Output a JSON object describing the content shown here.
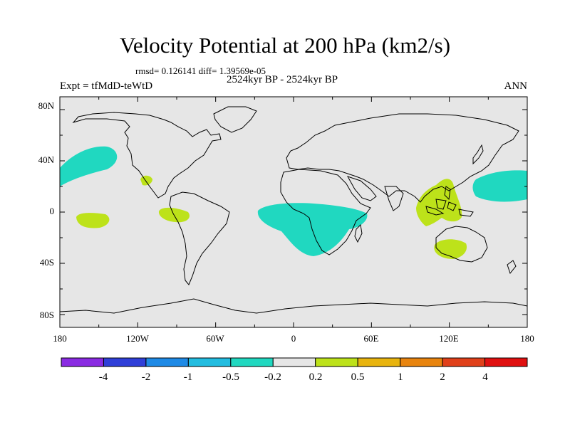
{
  "header": {
    "title": "Velocity Potential at 200 hPa (km2/s)",
    "stats": "rmsd= 0.126141 diff= 1.39569e-05",
    "left_label": "Expt = tfMdD-teWtD",
    "center_label": "2524kyr BP - 2524kyr BP",
    "right_label": "ANN"
  },
  "axes": {
    "lat_labels": [
      "80N",
      "40N",
      "0",
      "40S",
      "80S"
    ],
    "lon_labels": [
      "180",
      "120W",
      "60W",
      "0",
      "60E",
      "120E",
      "180"
    ]
  },
  "colorbar": {
    "colors": [
      "#8a2be2",
      "#2f3fd8",
      "#1e8ae6",
      "#23bde0",
      "#20d8c0",
      "#e6e6e6",
      "#bde21a",
      "#e8b40e",
      "#e8840e",
      "#e0401a",
      "#e01010"
    ],
    "labels": [
      "-4",
      "-2",
      "-1",
      "-0.5",
      "-0.2",
      "0.2",
      "0.5",
      "1",
      "2",
      "4"
    ]
  },
  "colors": {
    "background": "#e6e6e6",
    "negative_region": "#20d8c0",
    "positive_region": "#bde21a",
    "coastline": "#000000"
  },
  "regions": [
    {
      "name": "north-pacific-negative",
      "sign": "negative"
    },
    {
      "name": "central-pacific-positive",
      "sign": "positive"
    },
    {
      "name": "central-america-positive",
      "sign": "positive"
    },
    {
      "name": "eastern-pacific-positive",
      "sign": "positive"
    },
    {
      "name": "south-atlantic-africa-negative",
      "sign": "negative"
    },
    {
      "name": "maritime-continent-positive",
      "sign": "positive"
    },
    {
      "name": "australia-positive",
      "sign": "positive"
    },
    {
      "name": "western-pacific-negative",
      "sign": "negative"
    }
  ]
}
